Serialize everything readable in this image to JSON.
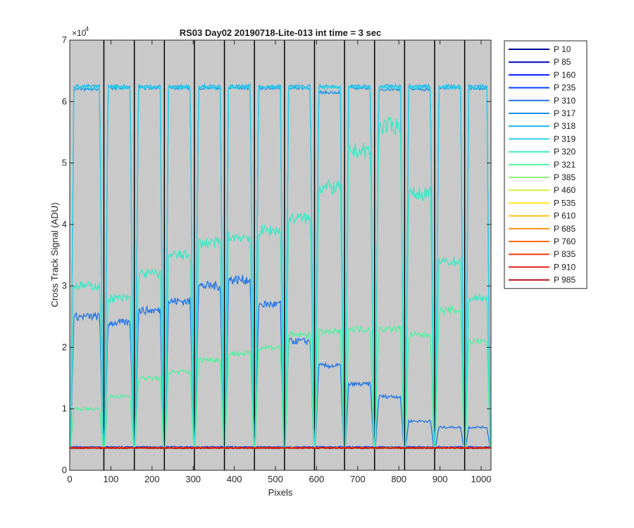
{
  "chart_data": {
    "type": "line",
    "title": "RS03 Day02 20190718-Lite-013 int time = 3 sec",
    "xlabel": "Pixels",
    "ylabel": "Cross Track Signal (ADU)",
    "xlim": [
      0,
      1024
    ],
    "ylim": [
      0,
      70000
    ],
    "y_exponent_label": "×10",
    "y_exponent": "4",
    "x_ticks": [
      0,
      100,
      200,
      300,
      400,
      500,
      600,
      700,
      800,
      900,
      1000
    ],
    "x_tick_labels": [
      "0",
      "100",
      "200",
      "300",
      "400",
      "500",
      "600",
      "700",
      "800",
      "900",
      "1000"
    ],
    "y_ticks": [
      0,
      10000,
      20000,
      30000,
      40000,
      50000,
      60000,
      70000
    ],
    "y_tick_labels": [
      "0",
      "1",
      "2",
      "3",
      "4",
      "5",
      "6",
      "7"
    ],
    "background_color": "#c9c9c9",
    "grid": false,
    "legend_position": "outside-right",
    "segment_boundaries": [
      0,
      83,
      157,
      230,
      303,
      376,
      449,
      522,
      595,
      668,
      741,
      814,
      887,
      960,
      1024
    ],
    "baseline_value": 3600,
    "series": [
      {
        "name": "P 10",
        "color": "#00008f",
        "level": 3650
      },
      {
        "name": "P 85",
        "color": "#0000b8",
        "level": 3700
      },
      {
        "name": "P 160",
        "color": "#0010ff",
        "level": 3750
      },
      {
        "name": "P 235",
        "color": "#0040ff",
        "level": 3800
      },
      {
        "name": "P 310",
        "color": "#1f73e6",
        "plateau": [
          25000,
          24000,
          26000,
          27500,
          30000,
          31000,
          27000,
          21000,
          17000,
          14000,
          12000,
          8000,
          7000
        ]
      },
      {
        "name": "P 317",
        "color": "#1a8fe6",
        "plateau": [
          62000,
          62200,
          62200,
          62200,
          62200,
          62200,
          62200,
          62200,
          61500,
          62200,
          62000,
          62000,
          62200
        ]
      },
      {
        "name": "P 318",
        "color": "#18b2ef",
        "plateau": [
          62500,
          62500,
          62500,
          62500,
          62500,
          62500,
          62500,
          62500,
          62500,
          62500,
          62500,
          62500,
          62500
        ]
      },
      {
        "name": "P 319",
        "color": "#2ad4e8",
        "plateau": [
          62300,
          62300,
          62300,
          62300,
          62300,
          62300,
          62300,
          62300,
          62300,
          62300,
          62300,
          62300,
          62300
        ]
      },
      {
        "name": "P 320",
        "color": "#3ce8c4",
        "plateau": [
          30000,
          28000,
          32000,
          35000,
          37000,
          38000,
          39000,
          41000,
          46000,
          52000,
          56000,
          45000,
          34000,
          28000
        ]
      },
      {
        "name": "P 321",
        "color": "#52f0a0",
        "plateau": [
          10000,
          12000,
          15000,
          16000,
          18000,
          19000,
          20000,
          22000,
          22500,
          23000,
          23000,
          22000,
          26000,
          21000
        ]
      },
      {
        "name": "P 385",
        "color": "#8ff07a",
        "level": 3650
      },
      {
        "name": "P 460",
        "color": "#d6f03c",
        "level": 3650
      },
      {
        "name": "P 535",
        "color": "#ffe31a",
        "level": 3650
      },
      {
        "name": "P 610",
        "color": "#ffbf10",
        "level": 3650
      },
      {
        "name": "P 685",
        "color": "#ff8f10",
        "level": 3650
      },
      {
        "name": "P 760",
        "color": "#ff6a10",
        "level": 3650
      },
      {
        "name": "P 835",
        "color": "#f23c14",
        "level": 3650
      },
      {
        "name": "P 910",
        "color": "#e01e14",
        "level": 3650
      },
      {
        "name": "P 985",
        "color": "#b80f14",
        "level": 3600
      }
    ]
  }
}
